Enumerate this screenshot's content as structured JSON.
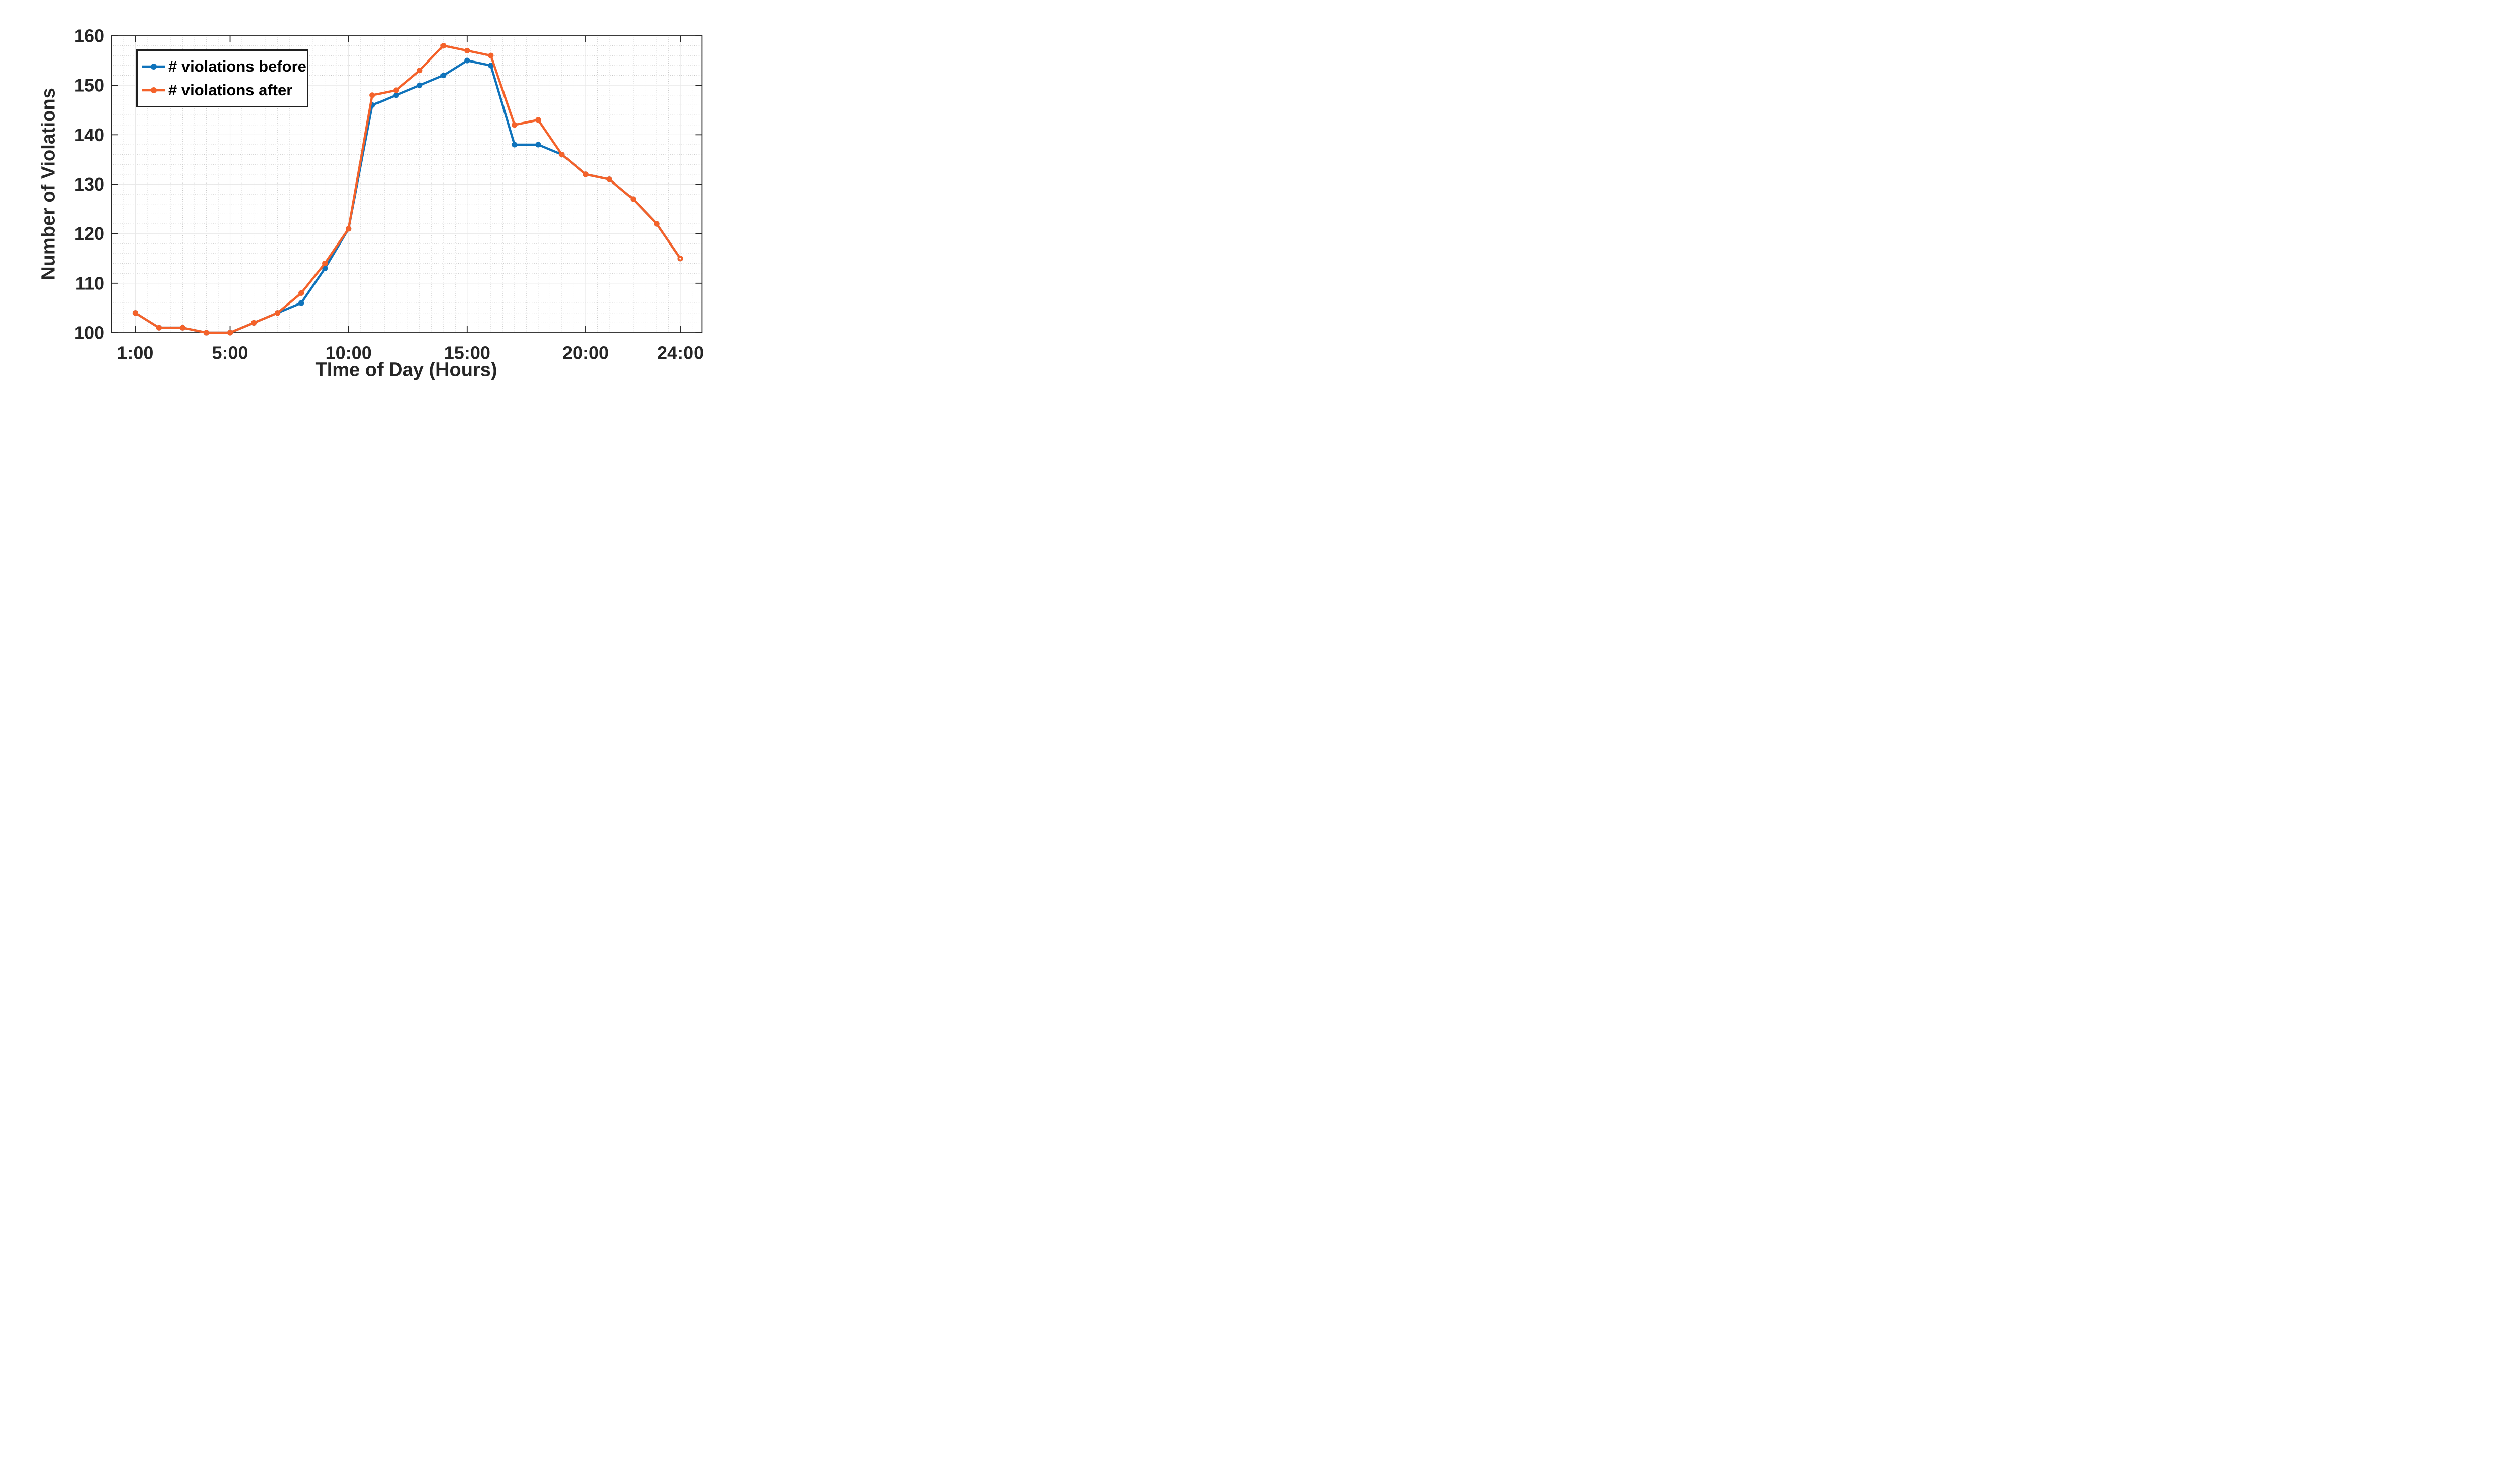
{
  "chart_data": {
    "type": "line",
    "title": "",
    "xlabel": "TIme of Day (Hours)",
    "ylabel": "Number of Violations",
    "x_hours": [
      1,
      2,
      3,
      4,
      5,
      6,
      7,
      8,
      9,
      10,
      11,
      12,
      13,
      14,
      15,
      16,
      17,
      18,
      19,
      20,
      21,
      22,
      23,
      24
    ],
    "series": [
      {
        "name": "# violations before",
        "color": "#0f73bb",
        "values": [
          104,
          101,
          101,
          100,
          100,
          102,
          104,
          106,
          113,
          121,
          146,
          148,
          150,
          152,
          155,
          154,
          138,
          138,
          136,
          132,
          131,
          127,
          122,
          115
        ],
        "note": "curve coincides with '# violations after' (hidden behind it) for hours 1-7 and 19-24"
      },
      {
        "name": "# violations after",
        "color": "#f4622a",
        "values": [
          104,
          101,
          101,
          100,
          100,
          102,
          104,
          108,
          114,
          121,
          148,
          149,
          153,
          158,
          157,
          156,
          142,
          143,
          136,
          132,
          131,
          127,
          122,
          115
        ]
      }
    ],
    "xlim": [
      0,
      24.9
    ],
    "ylim": [
      100,
      160
    ],
    "xticks": {
      "positions": [
        1,
        5,
        10,
        15,
        20,
        24
      ],
      "labels": [
        "1:00",
        "5:00",
        "10:00",
        "15:00",
        "20:00",
        "24:00"
      ]
    },
    "yticks": {
      "positions": [
        100,
        110,
        120,
        130,
        140,
        150,
        160
      ],
      "labels": [
        "100",
        "110",
        "120",
        "130",
        "140",
        "150",
        "160"
      ]
    },
    "grid": {
      "major": true,
      "minor": true,
      "y_minor_step": 2,
      "x_minor_step": 0.5
    },
    "legend": {
      "position": "top-left",
      "entries": [
        "# violations before",
        "# violations after"
      ]
    },
    "axes_color": "#262626",
    "background": "#ffffff",
    "marker": "filled-circle",
    "last_marker_open_center": true
  }
}
